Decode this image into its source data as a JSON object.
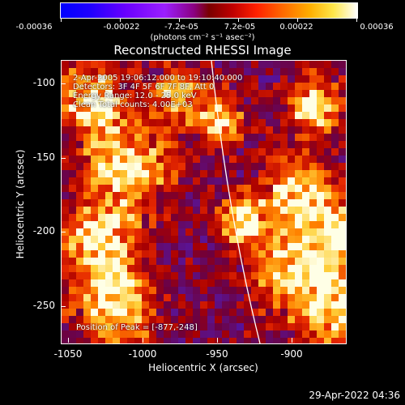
{
  "colorbar": {
    "tick_labels": [
      "-0.00036",
      "-0.00022",
      "-7.2e-05",
      "7.2e-05",
      "0.00022",
      "0.00036"
    ],
    "units_label": "(photons cm⁻² s⁻¹ asec⁻²)",
    "range": [
      -0.00036,
      0.00036
    ]
  },
  "plot": {
    "title": "Reconstructed RHESSI Image",
    "info_lines": [
      "2-Apr-2005 19:06:12.000 to 19:10:40.000",
      "Detectors: 3F 4F 5F 6F 7F 8F, Att 0",
      "Energy Range: 12.0 - 25.0 keV",
      "Clean     Total counts: 4.00E+03"
    ],
    "peak_label": "Position of Peak = [-877,-248]",
    "x_axis_title": "Heliocentric X (arcsec)",
    "y_axis_title": "Heliocentric Y (arcsec)",
    "x_ticks": [
      "-1050",
      "-1000",
      "-950",
      "-900"
    ],
    "y_ticks": [
      "-100",
      "-150",
      "-200",
      "-250"
    ],
    "x_range": [
      -1050,
      -870
    ],
    "y_range": [
      -275,
      -85
    ],
    "limb_color": "#ffffff"
  },
  "footer": {
    "timestamp": "29-Apr-2022 04:36"
  }
}
